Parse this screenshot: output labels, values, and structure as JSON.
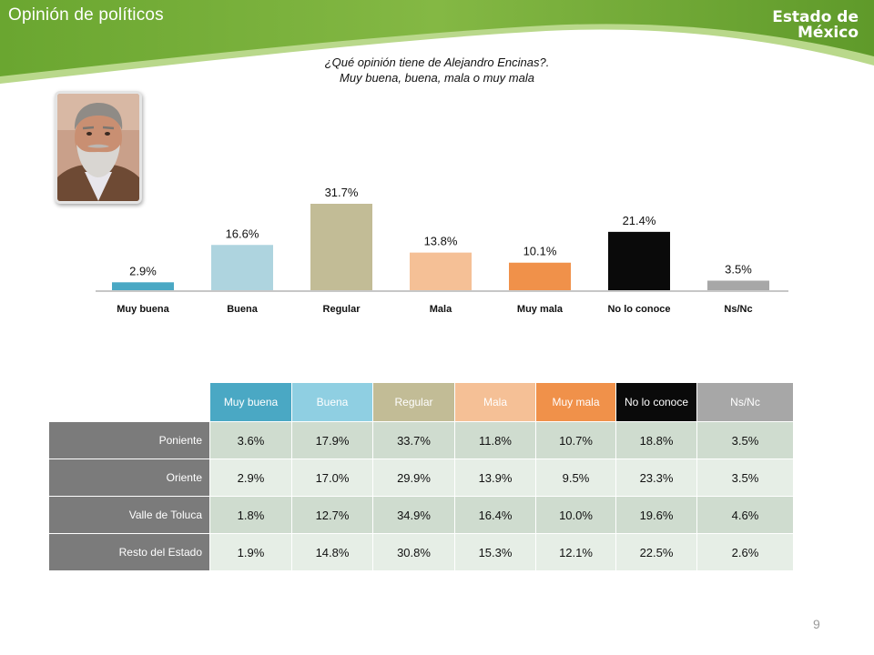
{
  "header": {
    "title": "Opinión de políticos",
    "logo_line1": "Estado de",
    "logo_line2": "México"
  },
  "question": {
    "line1": "¿Qué opinión tiene de Alejandro Encinas?.",
    "line2": "Muy buena, buena, mala o muy mala"
  },
  "chart_data": {
    "type": "bar",
    "categories": [
      "Muy buena",
      "Buena",
      "Regular",
      "Mala",
      "Muy mala",
      "No lo conoce",
      "Ns/Nc"
    ],
    "values": [
      2.9,
      16.6,
      31.7,
      13.8,
      10.1,
      21.4,
      3.5
    ],
    "labels": [
      "2.9%",
      "16.6%",
      "31.7%",
      "13.8%",
      "10.1%",
      "21.4%",
      "3.5%"
    ],
    "colors": [
      "#4aa8c4",
      "#aed4df",
      "#c2bc96",
      "#f5c096",
      "#f0914a",
      "#0a0a0a",
      "#a7a7a7"
    ],
    "ylim": [
      0,
      35
    ],
    "grid": false,
    "legend": "none"
  },
  "table": {
    "columns": [
      "Muy buena",
      "Buena",
      "Regular",
      "Mala",
      "Muy mala",
      "No lo conoce",
      "Ns/Nc"
    ],
    "header_colors": [
      "#4aa8c4",
      "#8fcfe2",
      "#c2bc96",
      "#f5c096",
      "#f0914a",
      "#0a0a0a",
      "#a7a7a7"
    ],
    "rows": [
      {
        "label": "Poniente",
        "values": [
          "3.6%",
          "17.9%",
          "33.7%",
          "11.8%",
          "10.7%",
          "18.8%",
          "3.5%"
        ]
      },
      {
        "label": "Oriente",
        "values": [
          "2.9%",
          "17.0%",
          "29.9%",
          "13.9%",
          "9.5%",
          "23.3%",
          "3.5%"
        ]
      },
      {
        "label": "Valle de Toluca",
        "values": [
          "1.8%",
          "12.7%",
          "34.9%",
          "16.4%",
          "10.0%",
          "19.6%",
          "4.6%"
        ]
      },
      {
        "label": "Resto del Estado",
        "values": [
          "1.9%",
          "14.8%",
          "30.8%",
          "15.3%",
          "12.1%",
          "22.5%",
          "2.6%"
        ]
      }
    ]
  },
  "page_number": "9",
  "theme": {
    "green_dark": "#5f9a2a",
    "green_light": "#9cc65a"
  }
}
